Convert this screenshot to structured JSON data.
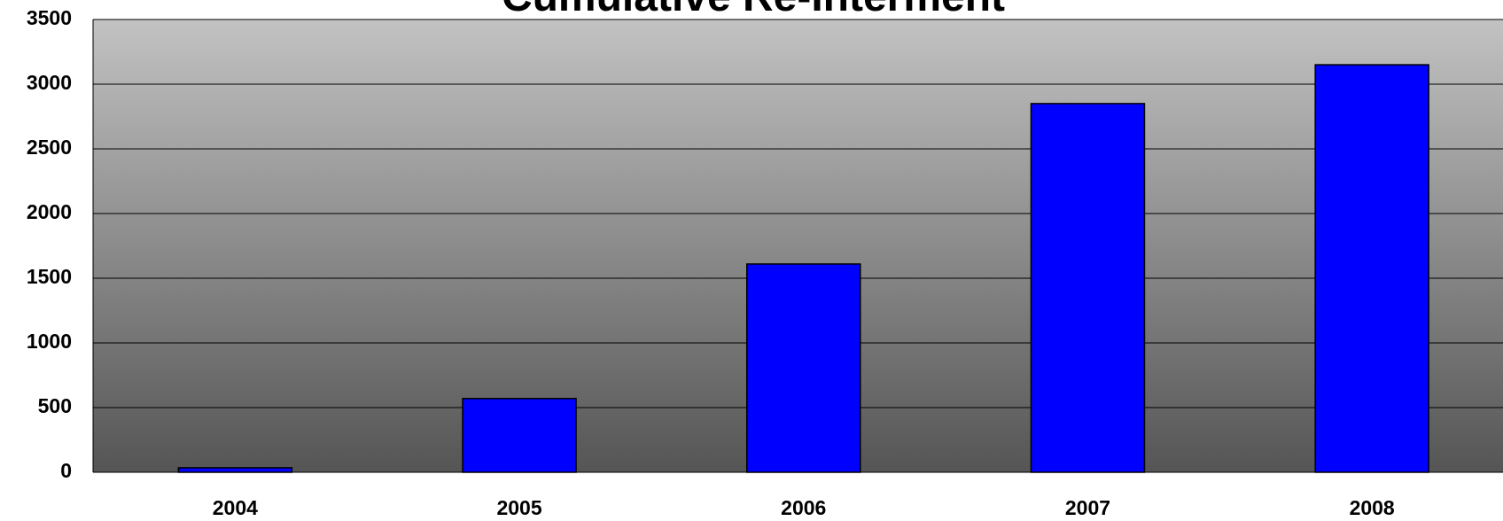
{
  "chart_data": {
    "type": "bar",
    "title": "Cumulative Re-Interment",
    "categories": [
      "2004",
      "2005",
      "2006",
      "2007",
      "2008"
    ],
    "values": [
      35,
      570,
      1610,
      2850,
      3150
    ],
    "color": "#0000ff",
    "ylim": [
      0,
      3500
    ],
    "yticks": [
      0,
      500,
      1000,
      1500,
      2000,
      2500,
      3000,
      3500
    ],
    "grid": true
  }
}
